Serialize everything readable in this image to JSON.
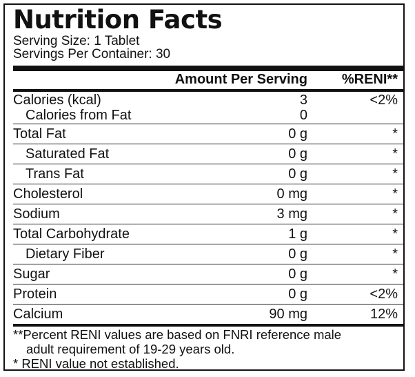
{
  "title": "Nutrition Facts",
  "serving_size": "Serving Size:  1 Tablet",
  "servings_per_container": "Servings Per Container: 30",
  "header": {
    "amount": "Amount Per Serving",
    "reni": "%RENI**"
  },
  "rows": [
    {
      "name": "Calories (kcal)",
      "amount": "3",
      "reni": "<2%"
    },
    {
      "name": "Calories from Fat",
      "amount": "0",
      "reni": ""
    },
    {
      "name": "Total Fat",
      "amount": "0 g",
      "reni": "*"
    },
    {
      "name": "Saturated Fat",
      "amount": "0 g",
      "reni": "*"
    },
    {
      "name": "Trans Fat",
      "amount": "0 g",
      "reni": "*"
    },
    {
      "name": "Cholesterol",
      "amount": "0 mg",
      "reni": "*"
    },
    {
      "name": "Sodium",
      "amount": "3 mg",
      "reni": "*"
    },
    {
      "name": "Total Carbohydrate",
      "amount": "1 g",
      "reni": "*"
    },
    {
      "name": "Dietary Fiber",
      "amount": "0 g",
      "reni": "*"
    },
    {
      "name": "Sugar",
      "amount": "0 g",
      "reni": "*"
    },
    {
      "name": "Protein",
      "amount": "0 g",
      "reni": "<2%"
    },
    {
      "name": "Calcium",
      "amount": "90 mg",
      "reni": "12%"
    }
  ],
  "footnotes": {
    "reni_line1": "**Percent RENI values are based on FNRI reference male",
    "reni_line2": "adult requirement of 19-29 years old.",
    "not_established": "*  RENI value not established."
  }
}
